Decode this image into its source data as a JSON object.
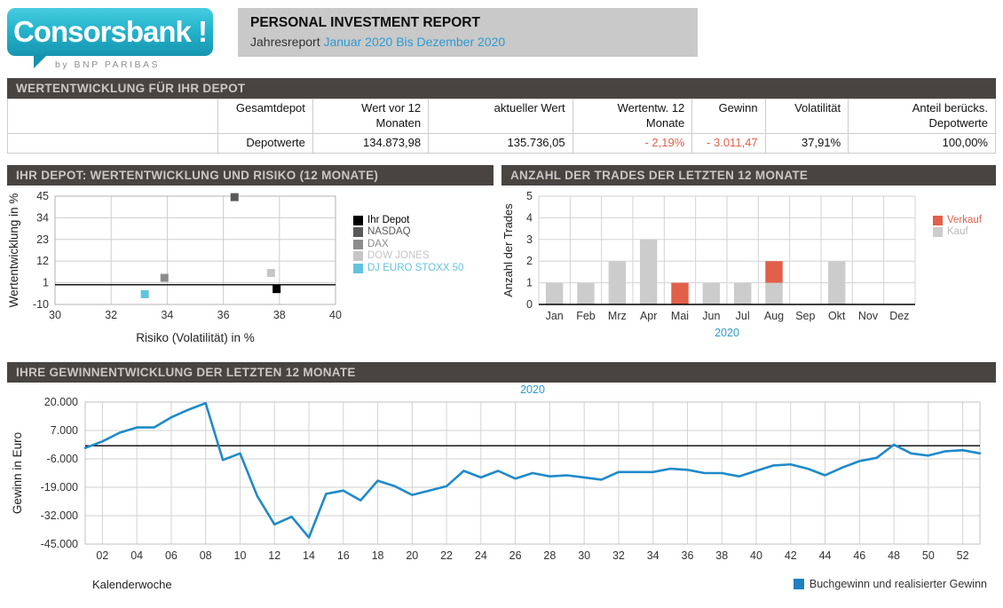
{
  "header": {
    "brand": "Consorsbank !",
    "byline": "by BNP PARIBAS",
    "title": "PERSONAL INVESTMENT REPORT",
    "subtitle_prefix": "Jahresreport",
    "subtitle_period": "Januar 2020 Bis Dezember 2020"
  },
  "colors": {
    "accent_blue": "#2e9ad2",
    "negative_red": "#e2604a",
    "heading_bar": "#474442",
    "line_blue": "#1f8ac9",
    "legend_blue": "#1f7fc0"
  },
  "sections": {
    "depot": {
      "heading": "WERTENTWICKLUNG FÜR IHR DEPOT",
      "table": {
        "columns": [
          "",
          "Gesamtdepot",
          "Wert vor 12 Monaten",
          "aktueller Wert",
          "Wertentw. 12 Monate",
          "Gewinn",
          "Volatilität",
          "Anteil berücks. Depotwerte"
        ],
        "rows": [
          [
            "",
            "Depotwerte",
            "134.873,98",
            "135.736,05",
            "- 2,19%",
            "- 3.011,47",
            "37,91%",
            "100,00%"
          ]
        ]
      }
    },
    "risk_return": {
      "heading": "IHR DEPOT: WERTENTWICKLUNG UND RISIKO (12 MONATE)"
    },
    "trades": {
      "heading": "ANZAHL DER TRADES DER LETZTEN 12 MONATE"
    },
    "profit": {
      "heading": "IHRE GEWINNENTWICKLUNG DER LETZTEN 12 MONATE"
    }
  },
  "chart_data": [
    {
      "id": "risk_return_scatter",
      "type": "scatter",
      "xlabel": "Risiko (Volatilität) in %",
      "ylabel": "Wertentwicklung in %",
      "xlim": [
        30,
        40
      ],
      "ylim": [
        -10,
        45
      ],
      "x_ticks": [
        30,
        32,
        34,
        36,
        38,
        40
      ],
      "y_ticks": [
        45,
        34,
        23,
        12,
        1,
        -10
      ],
      "zero_line": 0,
      "grid": true,
      "legend_position": "right",
      "series": [
        {
          "name": "Ihr Depot",
          "color": "#000000",
          "label_color": "#000000",
          "points": [
            [
              37.9,
              -2.2
            ]
          ]
        },
        {
          "name": "NASDAQ",
          "color": "#595959",
          "label_color": "#595959",
          "points": [
            [
              36.4,
              44.5
            ]
          ]
        },
        {
          "name": "DAX",
          "color": "#8c8c8c",
          "label_color": "#8c8c8c",
          "points": [
            [
              33.9,
              3.5
            ]
          ]
        },
        {
          "name": "DOW JONES",
          "color": "#c6c6c6",
          "label_color": "#c6c6c6",
          "points": [
            [
              37.7,
              6.0
            ]
          ]
        },
        {
          "name": "DJ EURO STOXX 50",
          "color": "#62c3dc",
          "label_color": "#62c3dc",
          "points": [
            [
              33.2,
              -4.8
            ]
          ]
        }
      ]
    },
    {
      "id": "trades_bar",
      "type": "bar",
      "stacked": true,
      "ylabel": "Anzahl der Trades",
      "xlabel": "2020",
      "categories": [
        "Jan",
        "Feb",
        "Mrz",
        "Apr",
        "Mai",
        "Jun",
        "Jul",
        "Aug",
        "Sep",
        "Okt",
        "Nov",
        "Dez"
      ],
      "ylim": [
        0,
        5
      ],
      "y_ticks": [
        0,
        1,
        2,
        3,
        4,
        5
      ],
      "grid": true,
      "legend_position": "right",
      "series": [
        {
          "name": "Kauf",
          "color": "#cccccc",
          "label_color": "#b9b9b9",
          "values": [
            1,
            1,
            2,
            3,
            0,
            1,
            1,
            1,
            0,
            2,
            0,
            0
          ]
        },
        {
          "name": "Verkauf",
          "color": "#e2604a",
          "label_color": "#e2604a",
          "values": [
            0,
            0,
            0,
            0,
            1,
            0,
            0,
            1,
            0,
            0,
            0,
            0
          ]
        }
      ],
      "legend_order": [
        "Verkauf",
        "Kauf"
      ]
    },
    {
      "id": "profit_line",
      "type": "line",
      "top_label": "2020",
      "xlabel": "Kalenderwoche",
      "ylabel": "Gewinn in Euro",
      "line_color": "#1f8ac9",
      "ylim": [
        -45000,
        20000
      ],
      "y_ticks": [
        20000,
        7000,
        -6000,
        -19000,
        -32000,
        -45000
      ],
      "y_tick_labels": [
        "20.000",
        "7.000",
        "-6.000",
        "-19.000",
        "-32.000",
        "-45.000"
      ],
      "x_tick_labels": [
        "02",
        "04",
        "06",
        "08",
        "10",
        "12",
        "14",
        "16",
        "18",
        "20",
        "22",
        "24",
        "26",
        "28",
        "30",
        "32",
        "34",
        "36",
        "38",
        "40",
        "42",
        "44",
        "46",
        "48",
        "50",
        "52"
      ],
      "zero_line": 0,
      "grid": true,
      "legend": [
        {
          "name": "Buchgewinn und realisierter Gewinn",
          "color": "#1f7fc0"
        }
      ],
      "x": [
        1,
        2,
        3,
        4,
        5,
        6,
        7,
        8,
        9,
        10,
        11,
        12,
        13,
        14,
        15,
        16,
        17,
        18,
        19,
        20,
        21,
        22,
        23,
        24,
        25,
        26,
        27,
        28,
        29,
        30,
        31,
        32,
        33,
        34,
        35,
        36,
        37,
        38,
        39,
        40,
        41,
        42,
        43,
        44,
        45,
        46,
        47,
        48,
        49,
        50,
        51,
        52,
        53
      ],
      "values": [
        -1000,
        2000,
        6000,
        8400,
        8400,
        13000,
        16500,
        19500,
        -6500,
        -3500,
        -23000,
        -36000,
        -32500,
        -42000,
        -22000,
        -20500,
        -25000,
        -16000,
        -18500,
        -22500,
        -20500,
        -18500,
        -11500,
        -14500,
        -11500,
        -15000,
        -12500,
        -14000,
        -13500,
        -14500,
        -15500,
        -12000,
        -12000,
        -12000,
        -10500,
        -11000,
        -12500,
        -12500,
        -14000,
        -11500,
        -9000,
        -8500,
        -10500,
        -13500,
        -10000,
        -7000,
        -5500,
        500,
        -3500,
        -4500,
        -2500,
        -2000,
        -3500
      ]
    }
  ]
}
